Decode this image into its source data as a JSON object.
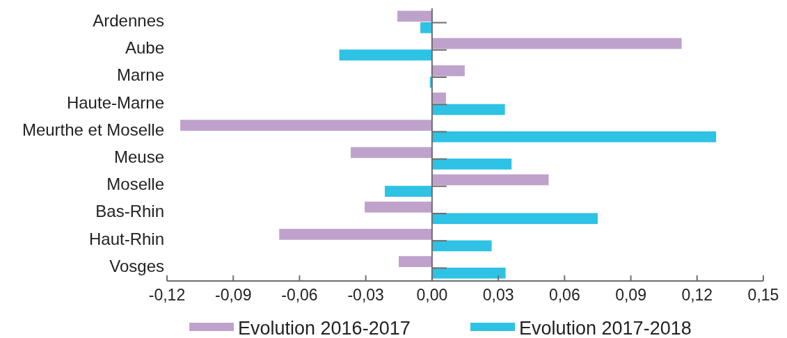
{
  "chart_data": {
    "type": "bar",
    "orientation": "horizontal",
    "categories": [
      "Ardennes",
      "Aube",
      "Marne",
      "Haute-Marne",
      "Meurthe et Moselle",
      "Meuse",
      "Moselle",
      "Bas-Rhin",
      "Haut-Rhin",
      "Vosges"
    ],
    "series": [
      {
        "name": "Evolution 2016-2017",
        "color": "#bfa2cb",
        "values": [
          -0.0157,
          0.113,
          0.0148,
          0.0063,
          -0.114,
          -0.0368,
          0.0528,
          -0.0305,
          -0.0692,
          -0.0151
        ]
      },
      {
        "name": "Evolution 2017-2018",
        "color": "#2ec2e5",
        "values": [
          -0.0053,
          -0.042,
          -0.001,
          0.033,
          0.1286,
          0.036,
          -0.0214,
          0.075,
          0.027,
          0.0333
        ]
      }
    ],
    "xlim": [
      -0.12,
      0.15
    ],
    "xticks": [
      {
        "value": -0.12,
        "label": "-0,12"
      },
      {
        "value": -0.09,
        "label": "-0,09"
      },
      {
        "value": -0.06,
        "label": "-0,06"
      },
      {
        "value": -0.03,
        "label": "-0,03"
      },
      {
        "value": 0,
        "label": "0,00"
      },
      {
        "value": 0.03,
        "label": "0,03"
      },
      {
        "value": 0.06,
        "label": "0,06"
      },
      {
        "value": 0.09,
        "label": "0,09"
      },
      {
        "value": 0.12,
        "label": "0,12"
      },
      {
        "value": 0.15,
        "label": "0,15"
      }
    ],
    "legend": "bottom"
  }
}
